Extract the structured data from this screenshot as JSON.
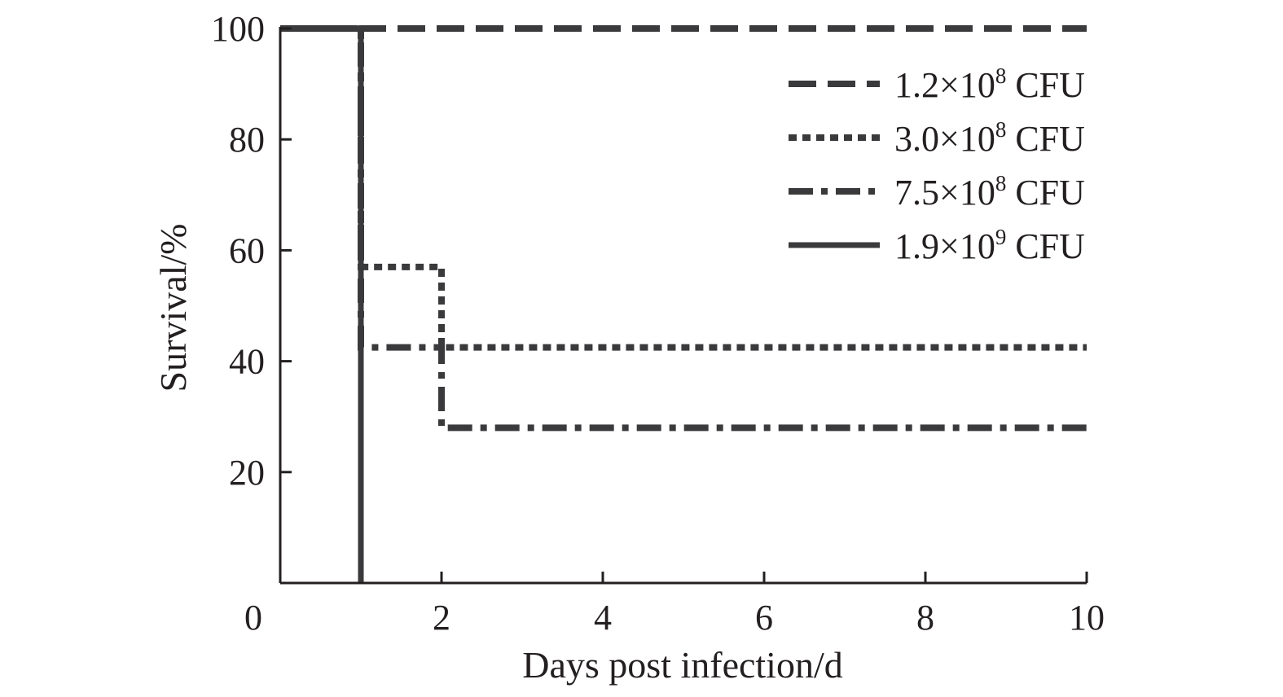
{
  "chart_data": {
    "type": "line",
    "step": true,
    "xlabel": "Days post infection/d",
    "ylabel": "Survival/%",
    "xlim": [
      0,
      10
    ],
    "ylim": [
      0,
      100
    ],
    "x_ticks": [
      0,
      2,
      4,
      6,
      8,
      10
    ],
    "y_ticks": [
      20,
      40,
      60,
      80,
      100
    ],
    "grid": false,
    "legend_position": "top-right",
    "series": [
      {
        "name": "1.2×10",
        "exp": "8",
        "unit": "CFU",
        "style": "dashed",
        "x": [
          0,
          10
        ],
        "y": [
          100,
          100
        ]
      },
      {
        "name": "3.0×10",
        "exp": "8",
        "unit": "CFU",
        "style": "dotted",
        "x": [
          0,
          1,
          1,
          2,
          2,
          10
        ],
        "y": [
          100,
          100,
          57,
          57,
          42.5,
          42.5
        ]
      },
      {
        "name": "7.5×10",
        "exp": "8",
        "unit": "CFU",
        "style": "dash-dot",
        "x": [
          0,
          1,
          1,
          2,
          2,
          10
        ],
        "y": [
          100,
          100,
          42.5,
          42.5,
          28,
          28
        ]
      },
      {
        "name": "1.9×10",
        "exp": "9",
        "unit": "CFU",
        "style": "solid",
        "x": [
          0,
          1,
          1
        ],
        "y": [
          100,
          100,
          0
        ]
      }
    ],
    "line_color": "#3a3a3c",
    "axis_color": "#231f20"
  }
}
